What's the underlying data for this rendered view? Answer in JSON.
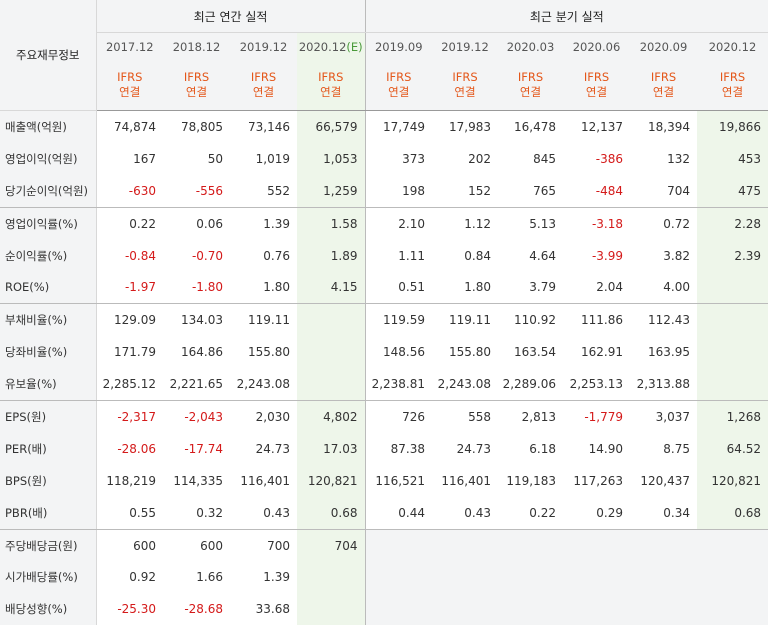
{
  "header": {
    "corner_label": "주요재무정보",
    "annual_title": "최근 연간 실적",
    "quarter_title": "최근 분기 실적",
    "annual_periods": [
      "2017.12",
      "2018.12",
      "2019.12",
      "2020.12"
    ],
    "estimate_mark": "(E)",
    "quarter_periods": [
      "2019.09",
      "2019.12",
      "2020.03",
      "2020.06",
      "2020.09",
      "2020.12"
    ],
    "ifrs_label": "IFRS",
    "ifrs_sub": "연결"
  },
  "rows": [
    {
      "label": "매출액(억원)",
      "annual": [
        "74,874",
        "78,805",
        "73,146",
        "66,579"
      ],
      "quarter": [
        "17,749",
        "17,983",
        "16,478",
        "12,137",
        "18,394",
        "19,866"
      ]
    },
    {
      "label": "영업이익(억원)",
      "annual": [
        "167",
        "50",
        "1,019",
        "1,053"
      ],
      "quarter": [
        "373",
        "202",
        "845",
        "-386",
        "132",
        "453"
      ]
    },
    {
      "label": "당기순이익(억원)",
      "annual": [
        "-630",
        "-556",
        "552",
        "1,259"
      ],
      "quarter": [
        "198",
        "152",
        "765",
        "-484",
        "704",
        "475"
      ]
    },
    {
      "label": "영업이익률(%)",
      "annual": [
        "0.22",
        "0.06",
        "1.39",
        "1.58"
      ],
      "quarter": [
        "2.10",
        "1.12",
        "5.13",
        "-3.18",
        "0.72",
        "2.28"
      ]
    },
    {
      "label": "순이익률(%)",
      "annual": [
        "-0.84",
        "-0.70",
        "0.76",
        "1.89"
      ],
      "quarter": [
        "1.11",
        "0.84",
        "4.64",
        "-3.99",
        "3.82",
        "2.39"
      ]
    },
    {
      "label": "ROE(%)",
      "annual": [
        "-1.97",
        "-1.80",
        "1.80",
        "4.15"
      ],
      "quarter": [
        "0.51",
        "1.80",
        "3.79",
        "2.04",
        "4.00",
        ""
      ]
    },
    {
      "label": "부채비율(%)",
      "annual": [
        "129.09",
        "134.03",
        "119.11",
        ""
      ],
      "quarter": [
        "119.59",
        "119.11",
        "110.92",
        "111.86",
        "112.43",
        ""
      ]
    },
    {
      "label": "당좌비율(%)",
      "annual": [
        "171.79",
        "164.86",
        "155.80",
        ""
      ],
      "quarter": [
        "148.56",
        "155.80",
        "163.54",
        "162.91",
        "163.95",
        ""
      ]
    },
    {
      "label": "유보율(%)",
      "annual": [
        "2,285.12",
        "2,221.65",
        "2,243.08",
        ""
      ],
      "quarter": [
        "2,238.81",
        "2,243.08",
        "2,289.06",
        "2,253.13",
        "2,313.88",
        ""
      ]
    },
    {
      "label": "EPS(원)",
      "annual": [
        "-2,317",
        "-2,043",
        "2,030",
        "4,802"
      ],
      "quarter": [
        "726",
        "558",
        "2,813",
        "-1,779",
        "3,037",
        "1,268"
      ]
    },
    {
      "label": "PER(배)",
      "annual": [
        "-28.06",
        "-17.74",
        "24.73",
        "17.03"
      ],
      "quarter": [
        "87.38",
        "24.73",
        "6.18",
        "14.90",
        "8.75",
        "64.52"
      ]
    },
    {
      "label": "BPS(원)",
      "annual": [
        "118,219",
        "114,335",
        "116,401",
        "120,821"
      ],
      "quarter": [
        "116,521",
        "116,401",
        "119,183",
        "117,263",
        "120,437",
        "120,821"
      ]
    },
    {
      "label": "PBR(배)",
      "annual": [
        "0.55",
        "0.32",
        "0.43",
        "0.68"
      ],
      "quarter": [
        "0.44",
        "0.43",
        "0.22",
        "0.29",
        "0.34",
        "0.68"
      ]
    },
    {
      "label": "주당배당금(원)",
      "annual": [
        "600",
        "600",
        "700",
        "704"
      ],
      "quarter": null
    },
    {
      "label": "시가배당률(%)",
      "annual": [
        "0.92",
        "1.66",
        "1.39",
        ""
      ],
      "quarter": null
    },
    {
      "label": "배당성향(%)",
      "annual": [
        "-25.30",
        "-28.68",
        "33.68",
        ""
      ],
      "quarter": null
    }
  ],
  "group_ends": [
    2,
    5,
    8,
    12
  ]
}
